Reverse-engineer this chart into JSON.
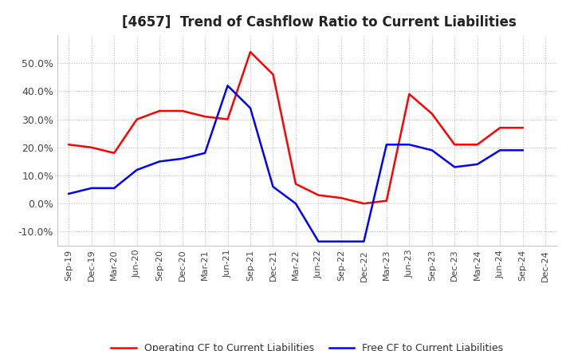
{
  "title": "[4657]  Trend of Cashflow Ratio to Current Liabilities",
  "title_fontsize": 12,
  "x_labels": [
    "Sep-19",
    "Dec-19",
    "Mar-20",
    "Jun-20",
    "Sep-20",
    "Dec-20",
    "Mar-21",
    "Jun-21",
    "Sep-21",
    "Dec-21",
    "Mar-22",
    "Jun-22",
    "Sep-22",
    "Dec-22",
    "Mar-23",
    "Jun-23",
    "Sep-23",
    "Dec-23",
    "Mar-24",
    "Jun-24",
    "Sep-24",
    "Dec-24"
  ],
  "operating_cf": [
    0.21,
    0.2,
    0.18,
    0.3,
    0.33,
    0.33,
    0.31,
    0.3,
    0.54,
    0.46,
    0.07,
    0.03,
    0.02,
    0.0,
    0.01,
    0.39,
    0.32,
    0.21,
    0.21,
    0.27,
    0.27,
    null
  ],
  "free_cf": [
    0.035,
    0.055,
    0.055,
    0.12,
    0.15,
    0.16,
    0.18,
    0.42,
    0.34,
    0.06,
    0.0,
    -0.135,
    -0.135,
    -0.135,
    0.21,
    0.21,
    0.19,
    0.13,
    0.14,
    0.19,
    0.19,
    null
  ],
  "operating_color": "#ff0000",
  "free_color": "#0000ff",
  "ylim": [
    -0.15,
    0.6
  ],
  "yticks": [
    -0.1,
    0.0,
    0.1,
    0.2,
    0.3,
    0.4,
    0.5
  ],
  "background_color": "#ffffff",
  "grid_color": "#bbbbbb",
  "legend_labels": [
    "Operating CF to Current Liabilities",
    "Free CF to Current Liabilities"
  ]
}
